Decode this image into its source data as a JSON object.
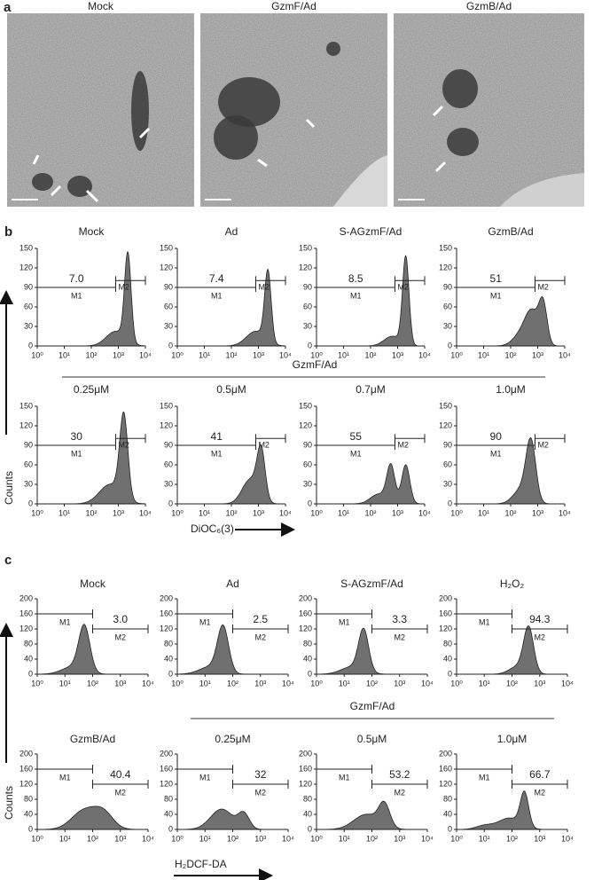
{
  "panel_a": {
    "label": "a",
    "images": [
      {
        "title": "Mock"
      },
      {
        "title": "GzmF/Ad"
      },
      {
        "title": "GzmB/Ad"
      }
    ]
  },
  "panel_b": {
    "label": "b",
    "y_axis_label": "Counts",
    "x_axis_label": "DiOC₆(3)",
    "group_label": "GzmF/Ad",
    "yticks": [
      0,
      30,
      60,
      90,
      120,
      150
    ],
    "xticks": [
      "10⁰",
      "10¹",
      "10²",
      "10³",
      "10⁴"
    ],
    "gate_labels": [
      "M1",
      "M2"
    ],
    "plots": [
      {
        "title": "Mock",
        "value": "7.0"
      },
      {
        "title": "Ad",
        "value": "7.4"
      },
      {
        "title": "S-AGzmF/Ad",
        "value": "8.5"
      },
      {
        "title": "GzmB/Ad",
        "value": "51"
      },
      {
        "title": "0.25μM",
        "value": "30"
      },
      {
        "title": "0.5μM",
        "value": "41"
      },
      {
        "title": "0.7μM",
        "value": "55"
      },
      {
        "title": "1.0μM",
        "value": "90"
      }
    ]
  },
  "panel_c": {
    "label": "c",
    "y_axis_label": "Counts",
    "x_axis_label": "H₂DCF-DA",
    "group_label": "GzmF/Ad",
    "yticks": [
      0,
      40,
      80,
      120,
      160,
      200
    ],
    "xticks": [
      "10⁰",
      "10¹",
      "10²",
      "10³",
      "10⁴"
    ],
    "gate_labels": [
      "M1",
      "M2"
    ],
    "plots": [
      {
        "title": "Mock",
        "value": "3.0"
      },
      {
        "title": "Ad",
        "value": "2.5"
      },
      {
        "title": "S-AGzmF/Ad",
        "value": "3.3"
      },
      {
        "title": "H₂O₂",
        "value": "94.3"
      },
      {
        "title": "GzmB/Ad",
        "value": "40.4"
      },
      {
        "title": "0.25μM",
        "value": "32"
      },
      {
        "title": "0.5μM",
        "value": "53.2"
      },
      {
        "title": "1.0μM",
        "value": "66.7"
      }
    ]
  }
}
